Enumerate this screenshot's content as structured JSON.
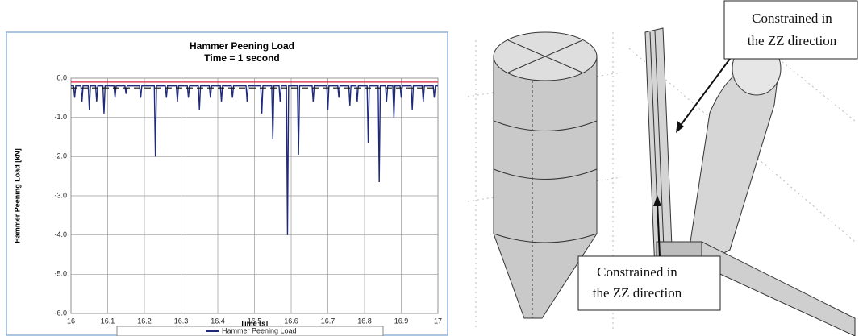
{
  "chart_data": {
    "type": "line",
    "title": "Hammer Peening Load",
    "subtitle": "Time = 1 second",
    "x_label": "Time [s]",
    "y_label": "Hammer Peening Load [kN]",
    "xlim": [
      16,
      17
    ],
    "xticks": [
      16,
      16.1,
      16.2,
      16.3,
      16.4,
      16.5,
      16.6,
      16.7,
      16.8,
      16.9,
      17
    ],
    "ylim": [
      -6,
      0
    ],
    "yticks": [
      {
        "value": 0,
        "label": "0.0"
      },
      {
        "value": -1,
        "label": "-1.0"
      },
      {
        "value": -2,
        "label": "-2.0"
      },
      {
        "value": -3,
        "label": "-3.0"
      },
      {
        "value": -4,
        "label": "-4.0"
      },
      {
        "value": -5,
        "label": "-5.0"
      },
      {
        "value": -6,
        "label": "-6.0"
      }
    ],
    "grid": true,
    "legend": "bottom",
    "series": [
      {
        "name": "Hammer Peening Load",
        "color": "#1f2a7a",
        "x": [
          16.0,
          16.007,
          16.01,
          16.013,
          16.027,
          16.03,
          16.033,
          16.047,
          16.05,
          16.053,
          16.067,
          16.07,
          16.073,
          16.087,
          16.09,
          16.093,
          16.117,
          16.12,
          16.123,
          16.147,
          16.15,
          16.153,
          16.187,
          16.19,
          16.193,
          16.227,
          16.23,
          16.233,
          16.257,
          16.26,
          16.263,
          16.287,
          16.29,
          16.293,
          16.317,
          16.32,
          16.323,
          16.347,
          16.35,
          16.353,
          16.377,
          16.38,
          16.383,
          16.407,
          16.41,
          16.413,
          16.437,
          16.44,
          16.443,
          16.477,
          16.48,
          16.483,
          16.517,
          16.52,
          16.523,
          16.547,
          16.55,
          16.553,
          16.567,
          16.57,
          16.573,
          16.587,
          16.59,
          16.593,
          16.617,
          16.62,
          16.623,
          16.657,
          16.66,
          16.663,
          16.697,
          16.7,
          16.703,
          16.727,
          16.73,
          16.733,
          16.757,
          16.76,
          16.763,
          16.777,
          16.78,
          16.783,
          16.807,
          16.81,
          16.813,
          16.837,
          16.84,
          16.843,
          16.857,
          16.86,
          16.863,
          16.877,
          16.88,
          16.883,
          16.897,
          16.9,
          16.903,
          16.927,
          16.93,
          16.933,
          16.957,
          16.96,
          16.963,
          16.987,
          16.99,
          16.993,
          17.0
        ],
        "values": [
          -0.2,
          -0.2,
          -0.5,
          -0.2,
          -0.2,
          -0.6,
          -0.2,
          -0.2,
          -0.8,
          -0.2,
          -0.2,
          -0.6,
          -0.2,
          -0.2,
          -0.9,
          -0.2,
          -0.2,
          -0.5,
          -0.2,
          -0.2,
          -0.4,
          -0.2,
          -0.2,
          -0.5,
          -0.2,
          -0.2,
          -2.0,
          -0.2,
          -0.2,
          -0.5,
          -0.2,
          -0.2,
          -0.6,
          -0.2,
          -0.2,
          -0.5,
          -0.2,
          -0.2,
          -0.8,
          -0.2,
          -0.2,
          -0.5,
          -0.2,
          -0.2,
          -0.6,
          -0.2,
          -0.2,
          -0.5,
          -0.2,
          -0.2,
          -0.6,
          -0.2,
          -0.2,
          -0.9,
          -0.2,
          -0.2,
          -1.55,
          -0.2,
          -0.2,
          -0.6,
          -0.2,
          -0.2,
          -4.0,
          -0.2,
          -0.2,
          -1.95,
          -0.2,
          -0.2,
          -0.6,
          -0.2,
          -0.2,
          -0.8,
          -0.2,
          -0.2,
          -0.5,
          -0.2,
          -0.2,
          -0.7,
          -0.2,
          -0.2,
          -0.6,
          -0.2,
          -0.2,
          -1.65,
          -0.2,
          -0.2,
          -2.65,
          -0.2,
          -0.2,
          -0.6,
          -0.2,
          -0.2,
          -1.0,
          -0.2,
          -0.2,
          -0.5,
          -0.2,
          -0.2,
          -0.8,
          -0.2,
          -0.2,
          -0.6,
          -0.2,
          -0.2,
          -0.5,
          -0.2,
          -0.2
        ]
      },
      {
        "color": "#e0203a",
        "x": [
          16,
          17
        ],
        "values": [
          -0.1,
          -0.1
        ]
      },
      {
        "color": "#111111",
        "dash": true,
        "x": [
          16,
          17
        ],
        "values": [
          -0.25,
          -0.25
        ]
      }
    ]
  },
  "annotations": [
    {
      "lines": [
        "Constrained in",
        "the ZZ direction"
      ]
    },
    {
      "lines": [
        "Constrained in",
        "the ZZ direction"
      ]
    }
  ]
}
